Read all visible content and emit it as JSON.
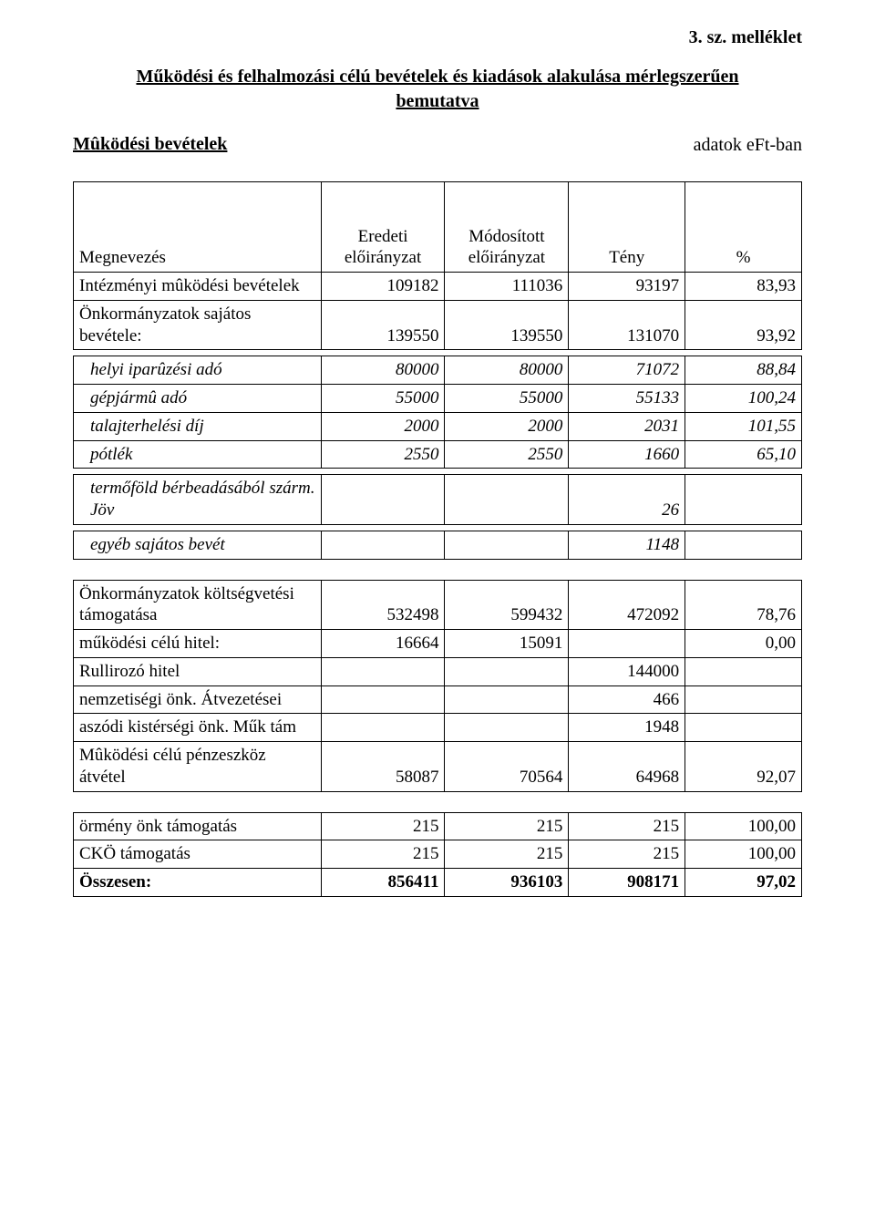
{
  "attachment_label": "3. sz. melléklet",
  "title_line1": "Működési és felhalmozási célú bevételek és kiadások alakulása mérlegszerűen",
  "title_line2": "bemutatva",
  "section_title": "Mûködési bevételek",
  "units": "adatok eFt-ban",
  "columns": {
    "name": "Megnevezés",
    "orig": "Eredeti előirányzat",
    "mod": "Módosított előirányzat",
    "fact": "Tény",
    "pct": "%"
  },
  "col_widths": [
    "34%",
    "17%",
    "17%",
    "16%",
    "16%"
  ],
  "table1": [
    {
      "label": "Intézményi mûködési bevételek",
      "orig": "109182",
      "mod": "111036",
      "fact": "93197",
      "pct": "83,93"
    },
    {
      "label": "Önkormányzatok sajátos bevétele:",
      "orig": "139550",
      "mod": "139550",
      "fact": "131070",
      "pct": "93,92"
    }
  ],
  "table1_sub": [
    {
      "label": "helyi iparûzési adó",
      "orig": "80000",
      "mod": "80000",
      "fact": "71072",
      "pct": "88,84",
      "italic": true
    },
    {
      "label": "gépjármû adó",
      "orig": "55000",
      "mod": "55000",
      "fact": "55133",
      "pct": "100,24",
      "italic": true
    },
    {
      "label": "talajterhelési díj",
      "orig": "2000",
      "mod": "2000",
      "fact": "2031",
      "pct": "101,55",
      "italic": true
    },
    {
      "label": "pótlék",
      "orig": "2550",
      "mod": "2550",
      "fact": "1660",
      "pct": "65,10",
      "italic": true
    }
  ],
  "table1_sub2": [
    {
      "label": "termőföld bérbeadásából szárm. Jöv",
      "orig": "",
      "mod": "",
      "fact": "26",
      "pct": "",
      "italic": true
    }
  ],
  "table1_sub3": [
    {
      "label": "egyéb sajátos bevét",
      "orig": "",
      "mod": "",
      "fact": "1148",
      "pct": "",
      "italic": true
    }
  ],
  "table2": [
    {
      "label": "Önkormányzatok költségvetési támogatása",
      "orig": "532498",
      "mod": "599432",
      "fact": "472092",
      "pct": "78,76"
    },
    {
      "label": "működési célú hitel:",
      "orig": "16664",
      "mod": "15091",
      "fact": "",
      "pct": "0,00"
    },
    {
      "label": "Rullirozó hitel",
      "orig": "",
      "mod": "",
      "fact": "144000",
      "pct": ""
    },
    {
      "label": "nemzetiségi önk. Átvezetései",
      "orig": "",
      "mod": "",
      "fact": "466",
      "pct": ""
    },
    {
      "label": "aszódi kistérségi  önk. Műk tám",
      "orig": "",
      "mod": "",
      "fact": "1948",
      "pct": ""
    },
    {
      "label": "Mûködési célú pénzeszköz átvétel",
      "orig": "58087",
      "mod": "70564",
      "fact": "64968",
      "pct": "92,07"
    }
  ],
  "table3": [
    {
      "label": "örmény önk támogatás",
      "orig": "215",
      "mod": "215",
      "fact": "215",
      "pct": "100,00"
    },
    {
      "label": "CKÖ támogatás",
      "orig": "215",
      "mod": "215",
      "fact": "215",
      "pct": "100,00"
    },
    {
      "label": "Összesen:",
      "orig": "856411",
      "mod": "936103",
      "fact": "908171",
      "pct": "97,02",
      "bold": true
    }
  ]
}
